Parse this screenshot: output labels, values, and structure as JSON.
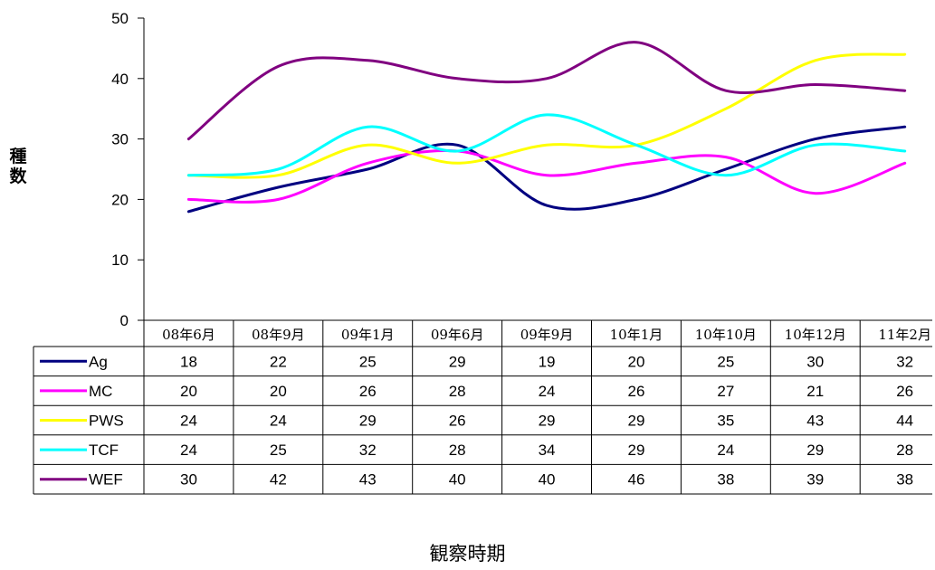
{
  "chart_data": {
    "type": "line",
    "ylabel": "種数",
    "xlabel": "観察時期",
    "ylim": [
      0,
      50
    ],
    "yticks": [
      0,
      10,
      20,
      30,
      40,
      50
    ],
    "categories": [
      "08年6月",
      "08年9月",
      "09年1月",
      "09年6月",
      "09年9月",
      "10年1月",
      "10年10月",
      "10年12月",
      "11年2月"
    ],
    "series": [
      {
        "name": "Ag",
        "color": "#000080",
        "values": [
          18,
          22,
          25,
          29,
          19,
          20,
          25,
          30,
          32
        ]
      },
      {
        "name": "MC",
        "color": "#ff00ff",
        "values": [
          20,
          20,
          26,
          28,
          24,
          26,
          27,
          21,
          26
        ]
      },
      {
        "name": "PWS",
        "color": "#ffff00",
        "values": [
          24,
          24,
          29,
          26,
          29,
          29,
          35,
          43,
          44
        ]
      },
      {
        "name": "TCF",
        "color": "#00ffff",
        "values": [
          24,
          25,
          32,
          28,
          34,
          29,
          24,
          29,
          28
        ]
      },
      {
        "name": "WEF",
        "color": "#800080",
        "values": [
          30,
          42,
          43,
          40,
          40,
          46,
          38,
          39,
          38
        ]
      }
    ],
    "grid": false,
    "legend": "data-table-left"
  }
}
